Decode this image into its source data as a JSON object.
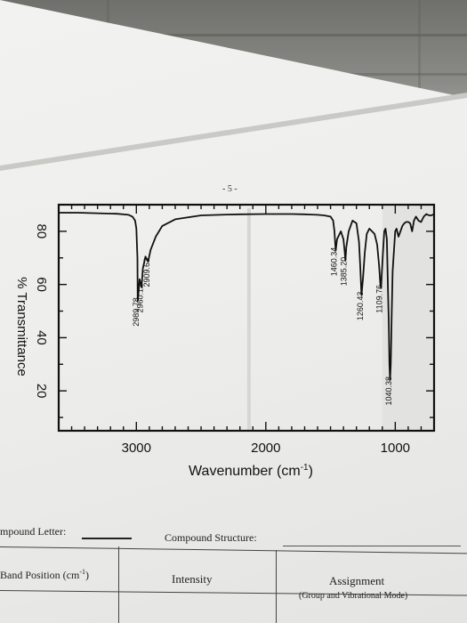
{
  "page": {
    "number_label": "- 5 -"
  },
  "chart_data": {
    "type": "line",
    "xlabel": "Wavenumber (cm",
    "xlabel_sup": "-1",
    "xlabel_close": ")",
    "ylabel": "% Transmittance",
    "xlim": [
      3600,
      700
    ],
    "ylim": [
      5,
      90
    ],
    "x_reversed": true,
    "x_ticks": [
      "3000",
      "2000",
      "1000"
    ],
    "x_tick_values": [
      3000,
      2000,
      1000
    ],
    "y_ticks": [
      "20",
      "40",
      "60",
      "80"
    ],
    "y_tick_values": [
      20,
      40,
      60,
      80
    ],
    "grid": false,
    "series": [
      {
        "x": [
          3600,
          3450,
          3300,
          3150,
          3060,
          3030,
          3010,
          3000,
          2992,
          2989.78,
          2986,
          2975,
          2965,
          2960.12,
          2950,
          2930,
          2909.63,
          2890,
          2850,
          2800,
          2700,
          2500,
          2300,
          2200,
          2000,
          1800,
          1700,
          1650,
          1600,
          1550,
          1500,
          1480,
          1470,
          1462,
          1460.34,
          1450,
          1420,
          1400,
          1390,
          1385.2,
          1378,
          1360,
          1330,
          1300,
          1280,
          1270,
          1260.43,
          1250,
          1235,
          1220,
          1200,
          1180,
          1160,
          1140,
          1125,
          1115,
          1109.76,
          1104,
          1095,
          1085,
          1075,
          1065,
          1058,
          1050,
          1045,
          1040.38,
          1035,
          1028,
          1020,
          1000,
          990,
          975,
          960,
          945,
          930,
          915,
          900,
          885,
          870,
          855,
          840,
          820,
          800,
          780,
          760,
          740,
          720,
          700
        ],
        "y": [
          87,
          87,
          86.8,
          86.6,
          86.2,
          85.5,
          84,
          81,
          70,
          53.8,
          55,
          62,
          60,
          58.9,
          66,
          70.5,
          68.6,
          73,
          78,
          82,
          84.5,
          86,
          86.3,
          86.4,
          86.5,
          86.5,
          86.4,
          86.3,
          86.2,
          86,
          85.5,
          84,
          80,
          74,
          72.7,
          77,
          80,
          77,
          72,
          69,
          74,
          80,
          84,
          83,
          76,
          66,
          56,
          62,
          72,
          79,
          81,
          80,
          79,
          75,
          67,
          60,
          58.6,
          64,
          72,
          80,
          81,
          77,
          62,
          45,
          30,
          24.1,
          30,
          48,
          65,
          80,
          81,
          78,
          80,
          82,
          83,
          83.5,
          83.5,
          83,
          80,
          84,
          85.5,
          84,
          83.5,
          85.5,
          86.5,
          86,
          86,
          86.5
        ]
      }
    ],
    "peak_labels": [
      {
        "text": "2989.78",
        "x": 2989.78,
        "y": 53.8
      },
      {
        "text": "2960.12",
        "x": 2960.12,
        "y": 58.9
      },
      {
        "text": "2909.63",
        "x": 2909.63,
        "y": 68.6
      },
      {
        "text": "1460.34",
        "x": 1460.34,
        "y": 72.7
      },
      {
        "text": "1385.20",
        "x": 1385.2,
        "y": 69
      },
      {
        "text": "1260.43",
        "x": 1260.43,
        "y": 56
      },
      {
        "text": "1109.76",
        "x": 1109.76,
        "y": 58.6
      },
      {
        "text": "1040.38",
        "x": 1040.38,
        "y": 24.1
      }
    ]
  },
  "form": {
    "compound_letter_label": "mpound Letter:",
    "compound_structure_label": "Compound Structure:",
    "table_headers": {
      "band_position": "Band Position (cm",
      "band_position_sup": "-1",
      "band_position_close": ")",
      "intensity": "Intensity",
      "assignment": "Assignment",
      "assignment_sub": "(Group and Vibrational Mode)"
    }
  }
}
